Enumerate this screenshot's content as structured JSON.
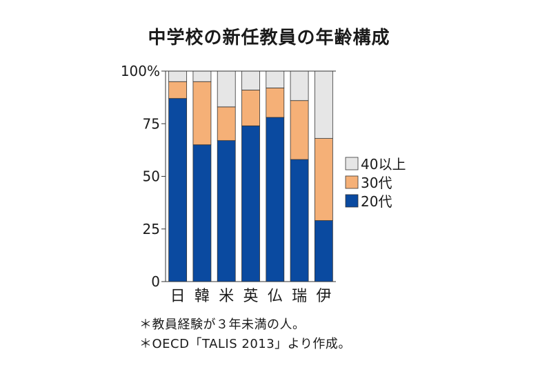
{
  "chart_data": {
    "type": "bar",
    "stacked": true,
    "title": "中学校の新任教員の年齢構成",
    "categories": [
      "日",
      "韓",
      "米",
      "英",
      "仏",
      "瑞",
      "伊"
    ],
    "series": [
      {
        "name": "20代",
        "values": [
          87,
          65,
          67,
          74,
          78,
          58,
          29
        ],
        "color": "#0a4aa0"
      },
      {
        "name": "30代",
        "values": [
          8,
          30,
          16,
          17,
          14,
          28,
          39
        ],
        "color": "#f5b077"
      },
      {
        "name": "40以上",
        "values": [
          5,
          5,
          17,
          9,
          8,
          14,
          32
        ],
        "color": "#e6e6e6"
      }
    ],
    "ylim": [
      0,
      100
    ],
    "yticks": [
      0,
      25,
      50,
      75,
      100
    ],
    "ytick_labels": [
      "0",
      "25",
      "50",
      "75",
      "100%"
    ],
    "grid": false,
    "legend_position": "right",
    "legend_order": [
      "40以上",
      "30代",
      "20代"
    ]
  },
  "notes": [
    "＊教員経験が３年未満の人。",
    "＊OECD「TALIS 2013」より作成。"
  ]
}
